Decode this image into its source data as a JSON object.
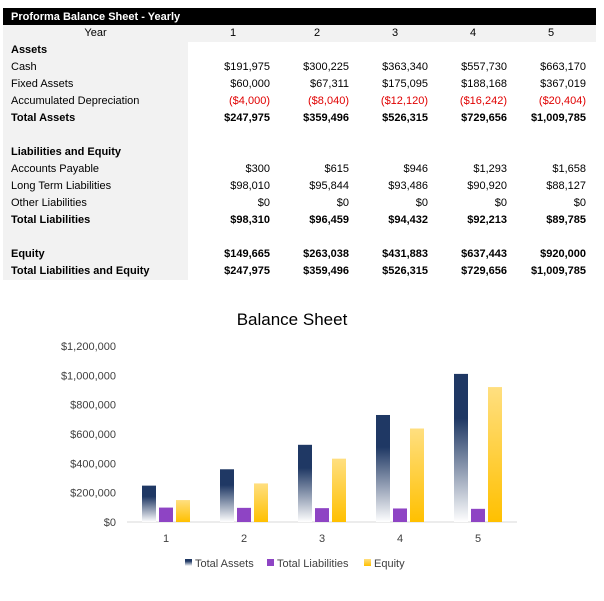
{
  "sheet": {
    "title": "Proforma Balance Sheet - Yearly",
    "year_label": "Year",
    "years": [
      "1",
      "2",
      "3",
      "4",
      "5"
    ],
    "rows": [
      {
        "label": "Assets",
        "bold": true,
        "values": []
      },
      {
        "label": "Cash",
        "values": [
          "$191,975",
          "$300,225",
          "$363,340",
          "$557,730",
          "$663,170"
        ]
      },
      {
        "label": "Fixed Assets",
        "values": [
          "$60,000",
          "$67,311",
          "$175,095",
          "$188,168",
          "$367,019"
        ]
      },
      {
        "label": "Accumulated Depreciation",
        "negative": true,
        "values": [
          "($4,000)",
          "($8,040)",
          "($12,120)",
          "($16,242)",
          "($20,404)"
        ]
      },
      {
        "label": "Total Assets",
        "bold": true,
        "values": [
          "$247,975",
          "$359,496",
          "$526,315",
          "$729,656",
          "$1,009,785"
        ]
      },
      {
        "label": "",
        "values": []
      },
      {
        "label": "Liabilities and Equity",
        "bold": true,
        "values": []
      },
      {
        "label": "Accounts Payable",
        "values": [
          "$300",
          "$615",
          "$946",
          "$1,293",
          "$1,658"
        ]
      },
      {
        "label": "Long Term Liabilities",
        "values": [
          "$98,010",
          "$95,844",
          "$93,486",
          "$90,920",
          "$88,127"
        ]
      },
      {
        "label": "Other Liabilities",
        "values": [
          "$0",
          "$0",
          "$0",
          "$0",
          "$0"
        ]
      },
      {
        "label": "Total Liabilities",
        "bold": true,
        "values": [
          "$98,310",
          "$96,459",
          "$94,432",
          "$92,213",
          "$89,785"
        ]
      },
      {
        "label": "",
        "values": []
      },
      {
        "label": "Equity",
        "bold": true,
        "values": [
          "$149,665",
          "$263,038",
          "$431,883",
          "$637,443",
          "$920,000"
        ]
      },
      {
        "label": "Total Liabilities and Equity",
        "bold": true,
        "values": [
          "$247,975",
          "$359,496",
          "$526,315",
          "$729,656",
          "$1,009,785"
        ]
      }
    ]
  },
  "chart_data": {
    "type": "bar",
    "title": "Balance Sheet",
    "categories": [
      "1",
      "2",
      "3",
      "4",
      "5"
    ],
    "series": [
      {
        "name": "Total Assets",
        "values": [
          247975,
          359496,
          526315,
          729656,
          1009785
        ],
        "color": "#1f3864"
      },
      {
        "name": "Total Liabilities",
        "values": [
          98310,
          96459,
          94432,
          92213,
          89785
        ],
        "color": "#8e44c4"
      },
      {
        "name": "Equity",
        "values": [
          149665,
          263038,
          431883,
          637443,
          920000
        ],
        "color": "#ffc000"
      }
    ],
    "yticks": [
      "$0",
      "$200,000",
      "$400,000",
      "$600,000",
      "$800,000",
      "$1,000,000",
      "$1,200,000"
    ],
    "ylim": [
      0,
      1200000
    ],
    "legend": "bottom"
  }
}
